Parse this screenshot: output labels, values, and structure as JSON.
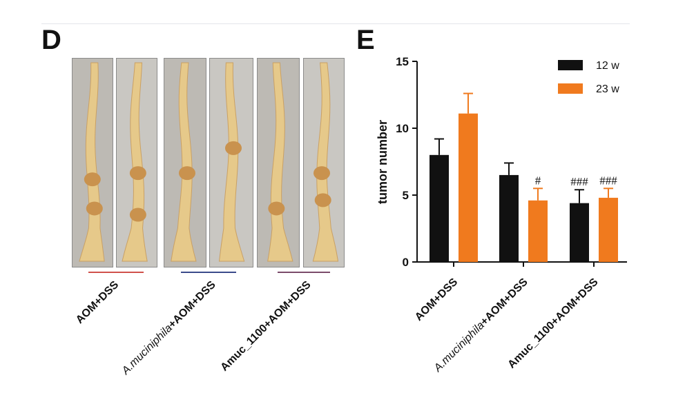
{
  "panel_d": {
    "letter": "D",
    "groups": [
      {
        "label_italic": "",
        "label_rest": "AOM+DSS",
        "line_color": "#d0504a"
      },
      {
        "label_italic": "A.muciniphila",
        "label_rest": "+AOM+DSS",
        "line_color": "#3a4a8a"
      },
      {
        "label_italic": "",
        "label_rest": "Amuc_1100+AOM+DSS",
        "line_color": "#7a4a6a"
      }
    ]
  },
  "panel_e": {
    "letter": "E"
  },
  "chart_data": {
    "type": "bar",
    "title": "",
    "xlabel": "",
    "ylabel": "tumor number",
    "ylim": [
      0,
      15
    ],
    "yticks": [
      0,
      5,
      10,
      15
    ],
    "categories": [
      {
        "italic": "",
        "rest": "AOM+DSS"
      },
      {
        "italic": "A.muciniphila",
        "rest": "+AOM+DSS"
      },
      {
        "italic": "",
        "rest": "Amuc_1100+AOM+DSS"
      }
    ],
    "series": [
      {
        "name": "12 w",
        "color": "#111111",
        "values": [
          8.0,
          6.5,
          4.4
        ],
        "errors": [
          1.2,
          0.9,
          1.0
        ],
        "annotations": [
          "",
          "",
          "###"
        ]
      },
      {
        "name": "23 w",
        "color": "#f07a1e",
        "values": [
          11.1,
          4.6,
          4.8
        ],
        "errors": [
          1.5,
          0.9,
          0.7
        ],
        "annotations": [
          "",
          "#",
          "###"
        ]
      }
    ],
    "legend_position": "top-right",
    "grid": false
  }
}
